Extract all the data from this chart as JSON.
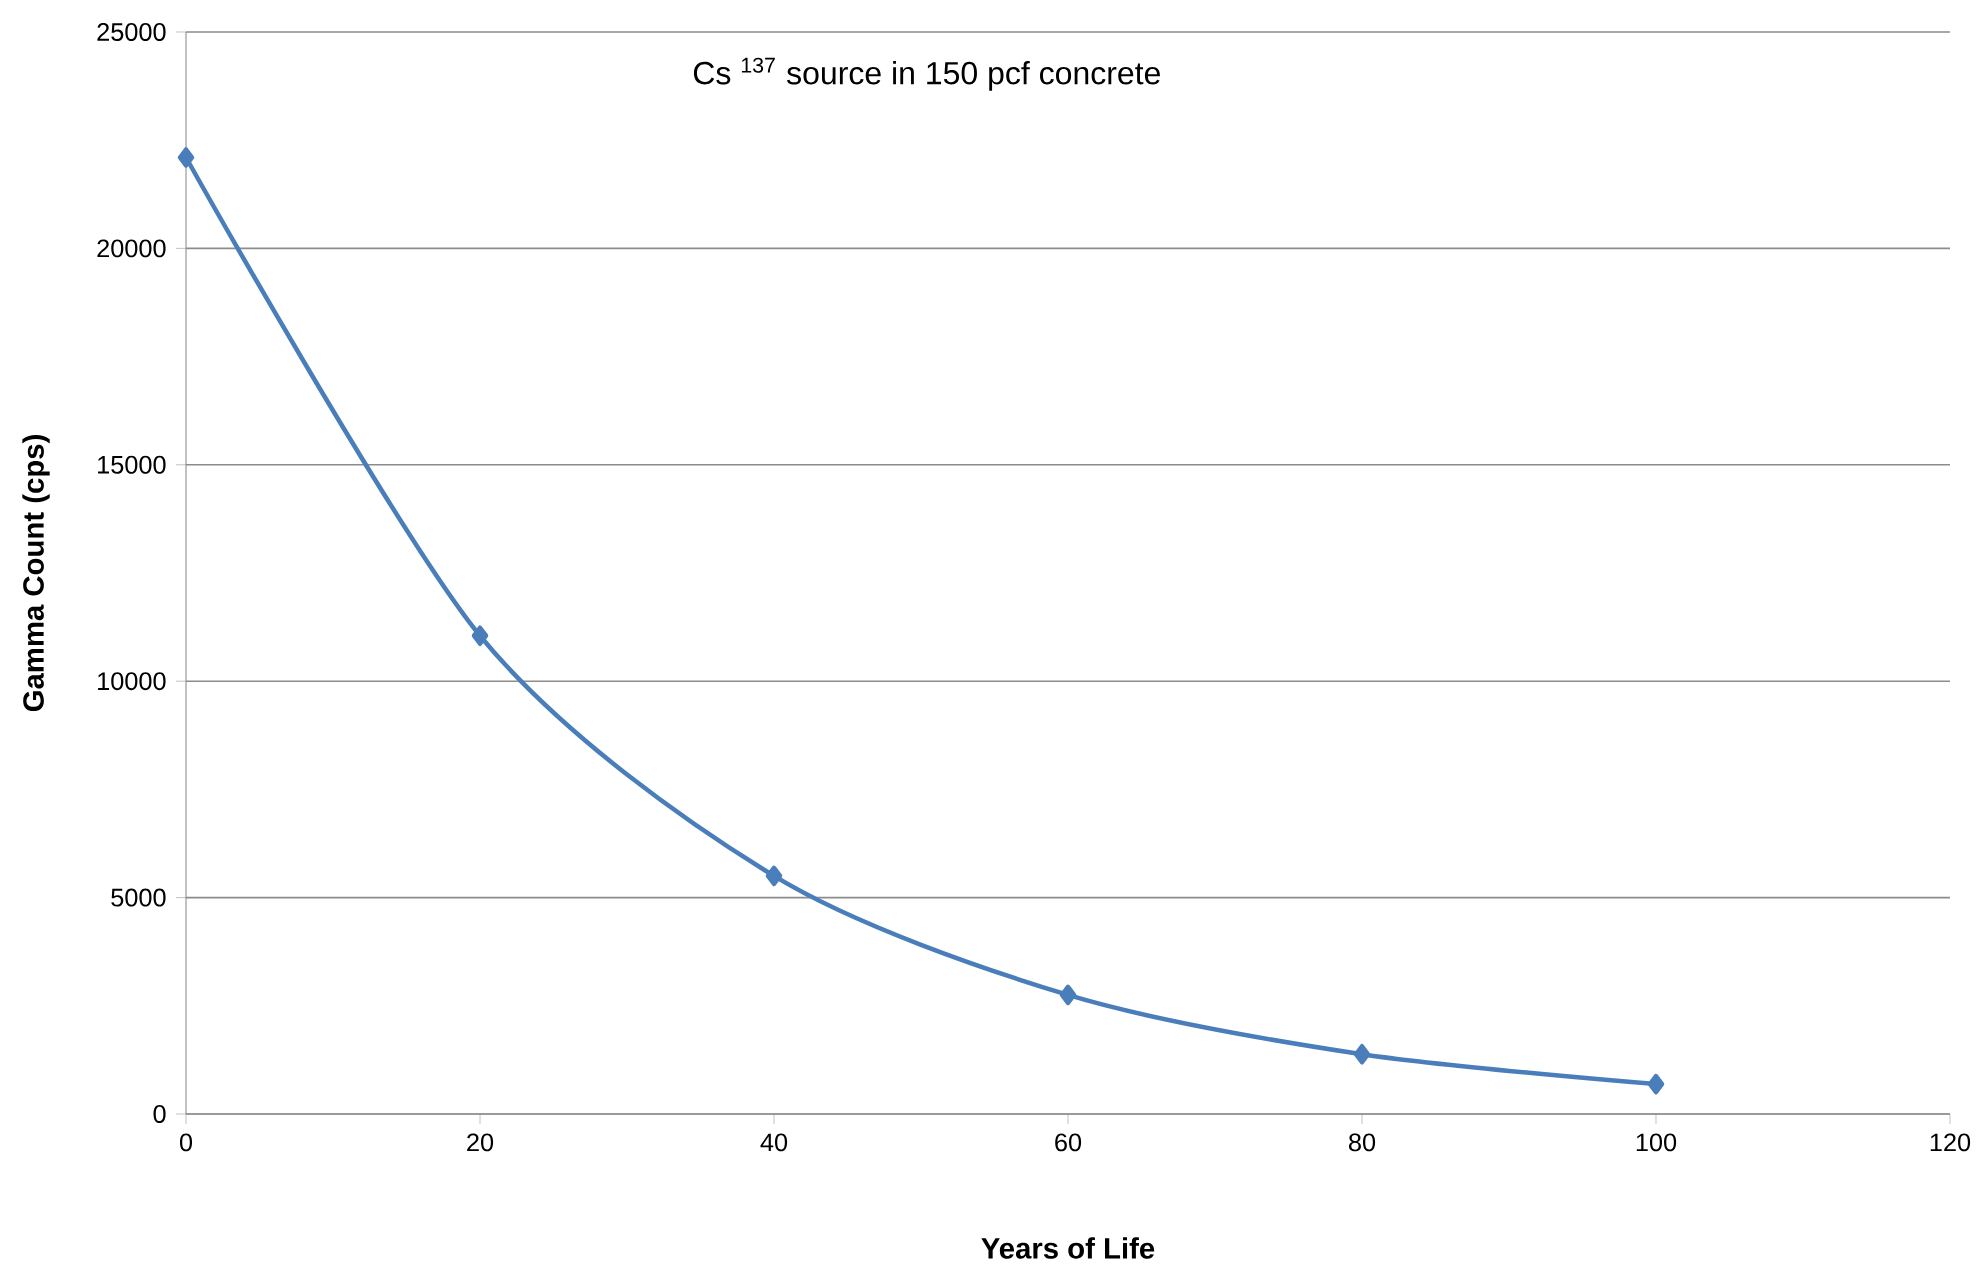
{
  "chart_data": {
    "type": "line",
    "xlabel": "Years of Life",
    "ylabel": "Gamma Count (cps)",
    "annotations": [
      "Cs $^{137}$ source in 150 pcf concrete"
    ],
    "x": [
      0,
      20,
      40,
      60,
      80,
      100
    ],
    "series": [
      {
        "color": "#4a7ebb",
        "values": [
          22100,
          11050,
          5500,
          2750,
          1380,
          690
        ]
      }
    ],
    "xlim": [
      0,
      120
    ],
    "xticks": [
      0,
      20,
      40,
      60,
      80,
      100,
      120
    ],
    "ylim": [
      0,
      25000
    ],
    "yticks": [
      0,
      5000,
      10000,
      15000,
      20000,
      25000
    ],
    "grid": "y",
    "marker": "diamond",
    "line_style": "solid"
  }
}
